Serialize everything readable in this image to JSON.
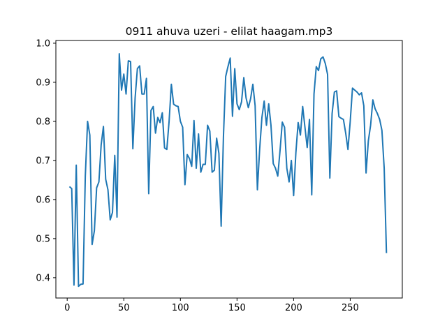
{
  "chart_data": {
    "type": "line",
    "title": "0911 ahuva uzeri - elilat haagam.mp3",
    "xlabel": "",
    "ylabel": "",
    "xlim": [
      -10,
      296
    ],
    "ylim": [
      0.348,
      1.007
    ],
    "xticks": [
      0,
      50,
      100,
      150,
      200,
      250
    ],
    "yticks": [
      0.4,
      0.5,
      0.6,
      0.7,
      0.8,
      0.9,
      1.0
    ],
    "ytick_labels": [
      "0.4",
      "0.5",
      "0.6",
      "0.7",
      "0.8",
      "0.9",
      "1.0"
    ],
    "grid": false,
    "line_color": "#1f77b4",
    "series": [
      {
        "x": [
          2,
          4,
          6,
          8,
          10,
          12,
          14,
          16,
          18,
          20,
          22,
          24,
          26,
          28,
          30,
          32,
          34,
          36,
          38,
          40,
          42,
          44,
          46,
          48,
          50,
          52,
          54,
          56,
          58,
          60,
          62,
          64,
          66,
          68,
          70,
          72,
          74,
          76,
          78,
          80,
          82,
          84,
          86,
          88,
          90,
          92,
          94,
          96,
          98,
          100,
          102,
          104,
          106,
          108,
          110,
          112,
          114,
          116,
          118,
          120,
          122,
          124,
          126,
          128,
          130,
          132,
          134,
          136,
          138,
          140,
          142,
          144,
          146,
          148,
          150,
          152,
          154,
          156,
          158,
          160,
          162,
          164,
          166,
          168,
          170,
          172,
          174,
          176,
          178,
          180,
          182,
          184,
          186,
          188,
          190,
          192,
          194,
          196,
          198,
          200,
          202,
          204,
          206,
          208,
          210,
          212,
          214,
          216,
          218,
          220,
          222,
          224,
          226,
          228,
          230,
          232,
          234,
          236,
          238,
          240,
          242,
          244,
          246,
          248,
          250,
          252,
          254,
          256,
          258,
          260,
          262,
          264,
          266,
          268,
          270,
          272,
          274,
          276,
          278,
          280,
          282
        ],
        "values": [
          0.633,
          0.628,
          0.381,
          0.688,
          0.378,
          0.383,
          0.384,
          0.66,
          0.8,
          0.765,
          0.485,
          0.52,
          0.63,
          0.645,
          0.74,
          0.787,
          0.652,
          0.625,
          0.548,
          0.567,
          0.713,
          0.555,
          0.973,
          0.88,
          0.921,
          0.87,
          0.955,
          0.953,
          0.73,
          0.86,
          0.935,
          0.942,
          0.87,
          0.87,
          0.91,
          0.615,
          0.828,
          0.838,
          0.77,
          0.81,
          0.797,
          0.822,
          0.732,
          0.728,
          0.8,
          0.895,
          0.844,
          0.84,
          0.838,
          0.8,
          0.785,
          0.638,
          0.715,
          0.705,
          0.685,
          0.802,
          0.68,
          0.768,
          0.67,
          0.69,
          0.69,
          0.79,
          0.775,
          0.67,
          0.675,
          0.757,
          0.718,
          0.532,
          0.76,
          0.915,
          0.94,
          0.962,
          0.813,
          0.935,
          0.845,
          0.83,
          0.85,
          0.912,
          0.86,
          0.835,
          0.858,
          0.895,
          0.84,
          0.625,
          0.728,
          0.81,
          0.852,
          0.79,
          0.845,
          0.79,
          0.692,
          0.68,
          0.66,
          0.725,
          0.798,
          0.785,
          0.68,
          0.645,
          0.7,
          0.61,
          0.72,
          0.797,
          0.765,
          0.838,
          0.785,
          0.733,
          0.805,
          0.612,
          0.87,
          0.94,
          0.93,
          0.96,
          0.965,
          0.948,
          0.92,
          0.655,
          0.82,
          0.875,
          0.878,
          0.812,
          0.808,
          0.805,
          0.77,
          0.728,
          0.8,
          0.885,
          0.88,
          0.875,
          0.868,
          0.873,
          0.84,
          0.668,
          0.75,
          0.79,
          0.855,
          0.832,
          0.82,
          0.805,
          0.777,
          0.68,
          0.463
        ]
      }
    ]
  }
}
